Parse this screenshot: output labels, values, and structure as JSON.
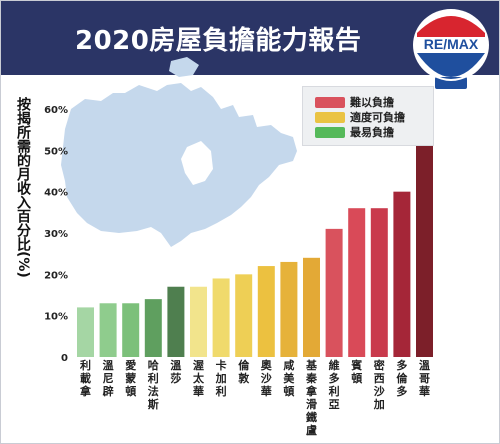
{
  "title": "2020房屋負擔能力報告",
  "logo_text": "RE/MAX",
  "colors": {
    "header_bg": "#2b3566",
    "map": "#c5d8ec"
  },
  "chart_data": {
    "type": "bar",
    "title": "2020房屋負擔能力報告",
    "xlabel": "",
    "ylabel": "按揭所需的月收入百分比(%)",
    "ylim": [
      0,
      60
    ],
    "yticks": [
      "0",
      "10%",
      "20%",
      "30%",
      "40%",
      "50%",
      "60%"
    ],
    "ytick_values": [
      0,
      10,
      20,
      30,
      40,
      50,
      60
    ],
    "grid": false,
    "legend_position": "top-right",
    "categories": [
      "利載拿",
      "溫尼辟",
      "愛蒙頓",
      "哈利法斯",
      "溫莎",
      "渥太華",
      "卡加利",
      "倫敦",
      "奧沙華",
      "咸美頓",
      "基秦拿滑鐵盧",
      "維多利亞",
      "賓頓",
      "密西沙加",
      "多倫多",
      "溫哥華"
    ],
    "values": [
      12,
      13,
      13,
      14,
      17,
      17,
      19,
      20,
      22,
      23,
      24,
      31,
      36,
      36,
      40,
      58
    ],
    "bar_colors": [
      "#a5d6a4",
      "#8fcc8d",
      "#7cc07a",
      "#5f9f5f",
      "#4f7f4f",
      "#f2e48c",
      "#f0da6c",
      "#eecf55",
      "#ecc140",
      "#e6b23a",
      "#e3a936",
      "#d9525d",
      "#d94a58",
      "#c93a4c",
      "#a52638",
      "#7c1f29"
    ],
    "legend": [
      {
        "label": "難以負擔",
        "color": "#d9525d"
      },
      {
        "label": "適度可負擔",
        "color": "#eac343"
      },
      {
        "label": "最易負擔",
        "color": "#55b95a"
      }
    ]
  }
}
